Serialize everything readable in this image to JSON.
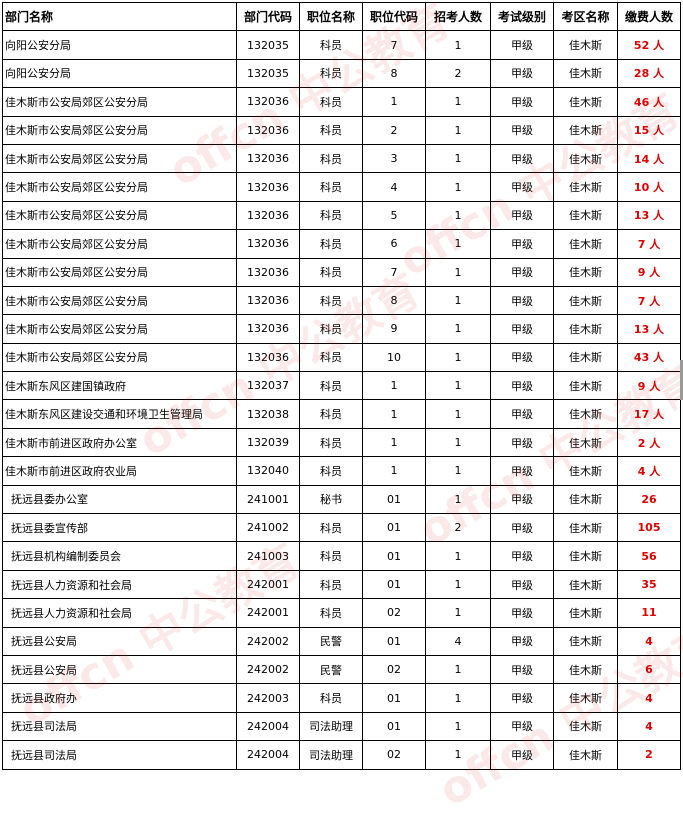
{
  "headers": [
    "部门名称",
    "部门代码",
    "职位名称",
    "职位代码",
    "招考人数",
    "考试级别",
    "考区名称",
    "缴费人数"
  ],
  "watermark": "offcn 中公教育",
  "rows": [
    [
      "向阳公安分局",
      "132035",
      "科员",
      "7",
      "1",
      "甲级",
      "佳木斯",
      "52 人"
    ],
    [
      "向阳公安分局",
      "132035",
      "科员",
      "8",
      "2",
      "甲级",
      "佳木斯",
      "28 人"
    ],
    [
      "佳木斯市公安局郊区公安分局",
      "132036",
      "科员",
      "1",
      "1",
      "甲级",
      "佳木斯",
      "46 人"
    ],
    [
      "佳木斯市公安局郊区公安分局",
      "132036",
      "科员",
      "2",
      "1",
      "甲级",
      "佳木斯",
      "15 人"
    ],
    [
      "佳木斯市公安局郊区公安分局",
      "132036",
      "科员",
      "3",
      "1",
      "甲级",
      "佳木斯",
      "14 人"
    ],
    [
      "佳木斯市公安局郊区公安分局",
      "132036",
      "科员",
      "4",
      "1",
      "甲级",
      "佳木斯",
      "10 人"
    ],
    [
      "佳木斯市公安局郊区公安分局",
      "132036",
      "科员",
      "5",
      "1",
      "甲级",
      "佳木斯",
      "13 人"
    ],
    [
      "佳木斯市公安局郊区公安分局",
      "132036",
      "科员",
      "6",
      "1",
      "甲级",
      "佳木斯",
      "7 人"
    ],
    [
      "佳木斯市公安局郊区公安分局",
      "132036",
      "科员",
      "7",
      "1",
      "甲级",
      "佳木斯",
      "9 人"
    ],
    [
      "佳木斯市公安局郊区公安分局",
      "132036",
      "科员",
      "8",
      "1",
      "甲级",
      "佳木斯",
      "7 人"
    ],
    [
      "佳木斯市公安局郊区公安分局",
      "132036",
      "科员",
      "9",
      "1",
      "甲级",
      "佳木斯",
      "13 人"
    ],
    [
      "佳木斯市公安局郊区公安分局",
      "132036",
      "科员",
      "10",
      "1",
      "甲级",
      "佳木斯",
      "43 人"
    ],
    [
      "佳木斯东风区建国镇政府",
      "132037",
      "科员",
      "1",
      "1",
      "甲级",
      "佳木斯",
      "9 人"
    ],
    [
      "佳木斯东风区建设交通和环境卫生管理局",
      "132038",
      "科员",
      "1",
      "1",
      "甲级",
      "佳木斯",
      "17 人"
    ],
    [
      "佳木斯市前进区政府办公室",
      "132039",
      "科员",
      "1",
      "1",
      "甲级",
      "佳木斯",
      "2 人"
    ],
    [
      "佳木斯市前进区政府农业局",
      "132040",
      "科员",
      "1",
      "1",
      "甲级",
      "佳木斯",
      "4 人"
    ],
    [
      "抚远县委办公室",
      "241001",
      "秘书",
      "01",
      "1",
      "甲级",
      "佳木斯",
      "26"
    ],
    [
      "抚远县委宣传部",
      "241002",
      "科员",
      "01",
      "2",
      "甲级",
      "佳木斯",
      "105"
    ],
    [
      "抚远县机构编制委员会",
      "241003",
      "科员",
      "01",
      "1",
      "甲级",
      "佳木斯",
      "56"
    ],
    [
      "抚远县人力资源和社会局",
      "242001",
      "科员",
      "01",
      "1",
      "甲级",
      "佳木斯",
      "35"
    ],
    [
      "抚远县人力资源和社会局",
      "242001",
      "科员",
      "02",
      "1",
      "甲级",
      "佳木斯",
      "11"
    ],
    [
      "抚远县公安局",
      "242002",
      "民警",
      "01",
      "4",
      "甲级",
      "佳木斯",
      "4"
    ],
    [
      "抚远县公安局",
      "242002",
      "民警",
      "02",
      "1",
      "甲级",
      "佳木斯",
      "6"
    ],
    [
      "抚远县政府办",
      "242003",
      "科员",
      "01",
      "1",
      "甲级",
      "佳木斯",
      "4"
    ],
    [
      "抚远县司法局",
      "242004",
      "司法助理",
      "01",
      "1",
      "甲级",
      "佳木斯",
      "4"
    ],
    [
      "抚远县司法局",
      "242004",
      "司法助理",
      "02",
      "1",
      "甲级",
      "佳木斯",
      "2"
    ]
  ]
}
